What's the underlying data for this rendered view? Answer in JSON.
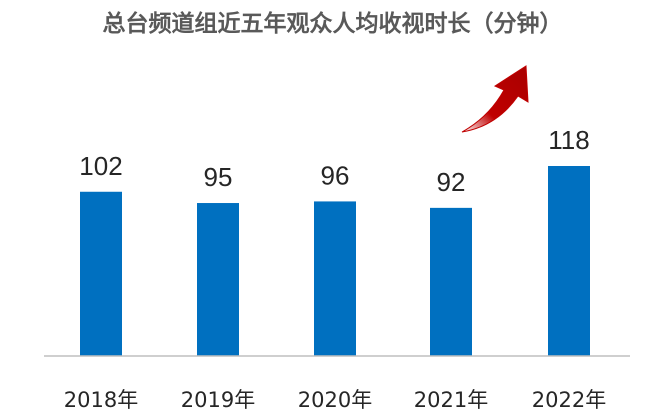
{
  "chart_data": {
    "type": "bar",
    "title": "总台频道组近五年观众人均收视时长（分钟）",
    "categories": [
      "2018年",
      "2019年",
      "2020年",
      "2021年",
      "2022年"
    ],
    "values": [
      102,
      95,
      96,
      92,
      118
    ],
    "data_labels": [
      "102",
      "95",
      "96",
      "92",
      "118"
    ],
    "xlabel": "",
    "ylabel": "",
    "ylim": [
      0,
      118
    ],
    "grid": false,
    "legend": "none",
    "bar_color": "#0070C0",
    "trend_arrow_color": "#C00000",
    "trend_arrow_icon": "trend-up-arrow-icon"
  }
}
